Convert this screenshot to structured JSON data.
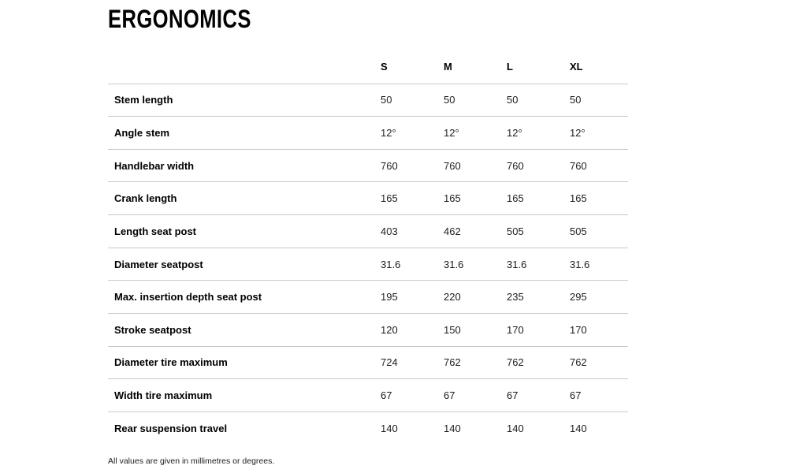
{
  "chart_data": {
    "type": "table",
    "title": "ERGONOMICS",
    "columns": [
      "S",
      "M",
      "L",
      "XL"
    ],
    "rows": [
      {
        "label": "Stem length",
        "values": [
          "50",
          "50",
          "50",
          "50"
        ]
      },
      {
        "label": "Angle stem",
        "values": [
          "12°",
          "12°",
          "12°",
          "12°"
        ]
      },
      {
        "label": "Handlebar width",
        "values": [
          "760",
          "760",
          "760",
          "760"
        ]
      },
      {
        "label": "Crank length",
        "values": [
          "165",
          "165",
          "165",
          "165"
        ]
      },
      {
        "label": "Length seat post",
        "values": [
          "403",
          "462",
          "505",
          "505"
        ]
      },
      {
        "label": "Diameter seatpost",
        "values": [
          "31.6",
          "31.6",
          "31.6",
          "31.6"
        ]
      },
      {
        "label": "Max. insertion depth seat post",
        "values": [
          "195",
          "220",
          "235",
          "295"
        ]
      },
      {
        "label": "Stroke seatpost",
        "values": [
          "120",
          "150",
          "170",
          "170"
        ]
      },
      {
        "label": "Diameter tire maximum",
        "values": [
          "724",
          "762",
          "762",
          "762"
        ]
      },
      {
        "label": "Width tire maximum",
        "values": [
          "67",
          "67",
          "67",
          "67"
        ]
      },
      {
        "label": "Rear suspension travel",
        "values": [
          "140",
          "140",
          "140",
          "140"
        ]
      }
    ],
    "footnote": "All values are given in millimetres or degrees.",
    "layout": {
      "grid": "horizontal row dividers only",
      "value_alignment": "left"
    }
  },
  "colors": {
    "background": "#ffffff",
    "text": "#1d1d1b",
    "heading": "#000000",
    "divider": "#c8c8c8"
  }
}
